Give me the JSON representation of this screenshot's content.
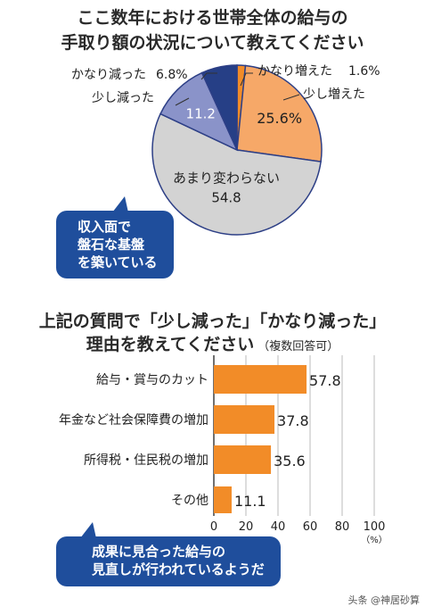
{
  "titles": {
    "pie_line1": "ここ数年における世帯全体の給与の",
    "pie_line2": "手取り額の状況について教えてください",
    "bar_line1": "上記の質問で「少し減った」「かなり減った」",
    "bar_line2": "理由を教えてください",
    "bar_note": "（複数回答可）"
  },
  "bubbles": {
    "first": [
      "収入面で",
      "盤石な基盤",
      "を築いている"
    ],
    "second": [
      "成果に見合った給与の",
      "見直しが行われているようだ"
    ]
  },
  "watermark": "头条 @神居砂算",
  "colors": {
    "navy": "#263f86",
    "orange": "#f28c28",
    "grey": "#d3d3d3",
    "lavender": "#8a93c9"
  },
  "chart_data": [
    {
      "type": "pie",
      "slices": [
        {
          "label": "かなり増えた",
          "value": 1.6,
          "value_text": "1.6%",
          "color": "#f28c28"
        },
        {
          "label": "少し増えた",
          "value": 25.6,
          "value_text": "25.6%",
          "color": "#f6a868"
        },
        {
          "label": "あまり変わらない",
          "value": 54.8,
          "value_text": "54.8",
          "color": "#d3d3d3"
        },
        {
          "label": "少し減った",
          "value": 11.2,
          "value_text": "11.2",
          "color": "#8a93c9"
        },
        {
          "label": "かなり減った",
          "value": 6.8,
          "value_text": "6.8%",
          "color": "#263f86"
        }
      ]
    },
    {
      "type": "bar",
      "orientation": "horizontal",
      "categories": [
        "給与・賞与のカット",
        "年金など社会保障費の増加",
        "所得税・住民税の増加",
        "その他"
      ],
      "values": [
        57.8,
        37.8,
        35.6,
        11.1
      ],
      "value_labels": [
        "57.8",
        "37.8",
        "35.6",
        "11.1"
      ],
      "xlim": [
        0,
        100
      ],
      "xticks": [
        "0",
        "20",
        "40",
        "60",
        "80",
        "100"
      ],
      "unit": "（%）",
      "color": "#f28c28"
    }
  ]
}
